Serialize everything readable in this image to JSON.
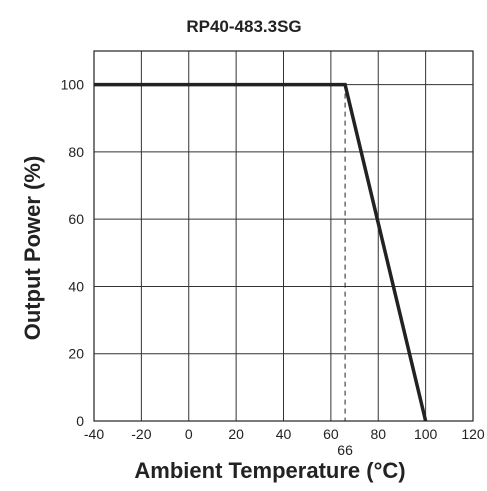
{
  "chart_data": {
    "type": "line",
    "title": "RP40-483.3SG",
    "xlabel": "Ambient Temperature (°C)",
    "ylabel": "Output Power (%)",
    "xlim": [
      -40,
      120
    ],
    "ylim": [
      0,
      110
    ],
    "x_ticks": [
      -40,
      -20,
      0,
      20,
      40,
      60,
      80,
      100,
      120
    ],
    "y_ticks": [
      0,
      20,
      40,
      60,
      80,
      100
    ],
    "grid": true,
    "series": [
      {
        "x": [
          -40,
          66,
          100
        ],
        "y": [
          100,
          100,
          0
        ],
        "color": "#222222"
      }
    ],
    "annotations": [
      {
        "type": "vertical-dashed-line",
        "x": 66,
        "label": "66"
      }
    ]
  }
}
